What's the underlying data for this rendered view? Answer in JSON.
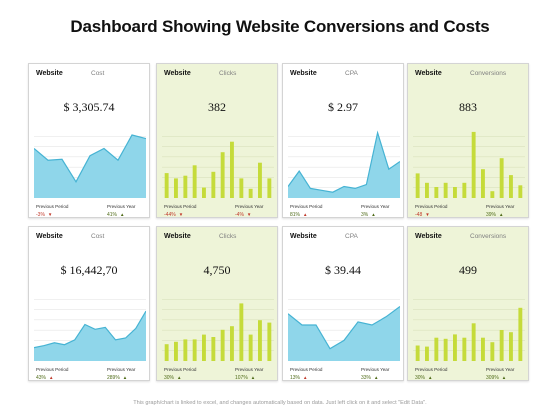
{
  "title": "Dashboard Showing Website Conversions and Costs",
  "disclaimer": "This graph/chart is linked to excel, and changes automatically based on data. Just left click on it and select \"Edit Data\".",
  "footer_labels": {
    "previous_period": "Previous Period",
    "previous_year": "Previous Year"
  },
  "colors": {
    "area": "#8fd6ea",
    "area_line": "#46b3d3",
    "bar": "#c5db3a",
    "card_green": "#eef4d8",
    "negative": "#c0392b",
    "positive": "#4f6b18"
  },
  "cards": [
    {
      "title": "Website",
      "metric": "Cost",
      "value": "$ 3,305.74",
      "style": "white",
      "change_period": "-3%",
      "change_period_dir": "down",
      "change_year": "41%",
      "change_year_dir": "up"
    },
    {
      "title": "Website",
      "metric": "Clicks",
      "value": "382",
      "style": "green",
      "change_period": "-44%",
      "change_period_dir": "down",
      "change_year": "-4%",
      "change_year_dir": "down"
    },
    {
      "title": "Website",
      "metric": "CPA",
      "value": "$ 2.97",
      "style": "white",
      "change_period": "81%",
      "change_period_dir": "up",
      "change_year": "3%",
      "change_year_dir": "up"
    },
    {
      "title": "Website",
      "metric": "Conversions",
      "value": "883",
      "style": "green",
      "change_period": "-48",
      "change_period_dir": "down",
      "change_year": "39%",
      "change_year_dir": "up"
    },
    {
      "title": "Website",
      "metric": "Cost",
      "value": "$ 16,442,70",
      "style": "white",
      "change_period": "43%",
      "change_period_dir": "up",
      "change_year": "289%",
      "change_year_dir": "up"
    },
    {
      "title": "Website",
      "metric": "Clicks",
      "value": "4,750",
      "style": "green",
      "change_period": "30%",
      "change_period_dir": "up",
      "change_year": "107%",
      "change_year_dir": "up"
    },
    {
      "title": "Website",
      "metric": "CPA",
      "value": "$ 39.44",
      "style": "white",
      "change_period": "13%",
      "change_period_dir": "up",
      "change_year": "33%",
      "change_year_dir": "up"
    },
    {
      "title": "Website",
      "metric": "Conversions",
      "value": "499",
      "style": "green",
      "change_period": "30%",
      "change_period_dir": "up",
      "change_year": "309%",
      "change_year_dir": "up"
    }
  ],
  "chart_data": [
    {
      "type": "area",
      "title": "Cost",
      "values": [
        55,
        42,
        43,
        18,
        47,
        55,
        42,
        70,
        66
      ],
      "ylim": [
        0,
        80
      ],
      "grid": true
    },
    {
      "type": "bar",
      "title": "Clicks",
      "values": [
        19,
        15,
        17,
        25,
        8,
        20,
        35,
        43,
        15,
        7,
        27,
        15
      ],
      "ylim": [
        0,
        55
      ],
      "grid": true
    },
    {
      "type": "area",
      "title": "CPA",
      "values": [
        12,
        28,
        10,
        8,
        6,
        12,
        10,
        14,
        68,
        30,
        38
      ],
      "ylim": [
        0,
        75
      ],
      "grid": true
    },
    {
      "type": "bar",
      "title": "Conversions",
      "values": [
        29,
        18,
        13,
        18,
        13,
        18,
        78,
        34,
        8,
        47,
        27,
        15
      ],
      "ylim": [
        0,
        85
      ],
      "grid": true
    },
    {
      "type": "area",
      "title": "Cost",
      "values": [
        14,
        16,
        19,
        17,
        22,
        38,
        33,
        35,
        22,
        24,
        34,
        52
      ],
      "ylim": [
        0,
        75
      ],
      "grid": true
    },
    {
      "type": "bar",
      "title": "Clicks",
      "values": [
        14,
        16,
        18,
        18,
        22,
        20,
        26,
        29,
        48,
        22,
        34,
        32
      ],
      "ylim": [
        0,
        60
      ],
      "grid": true
    },
    {
      "type": "area",
      "title": "CPA",
      "values": [
        46,
        35,
        35,
        12,
        20,
        38,
        35,
        43,
        53
      ],
      "ylim": [
        0,
        70
      ],
      "grid": true
    },
    {
      "type": "bar",
      "title": "Conversions",
      "values": [
        14,
        13,
        21,
        20,
        24,
        21,
        34,
        21,
        17,
        28,
        26,
        48
      ],
      "ylim": [
        0,
        65
      ],
      "grid": true
    }
  ]
}
